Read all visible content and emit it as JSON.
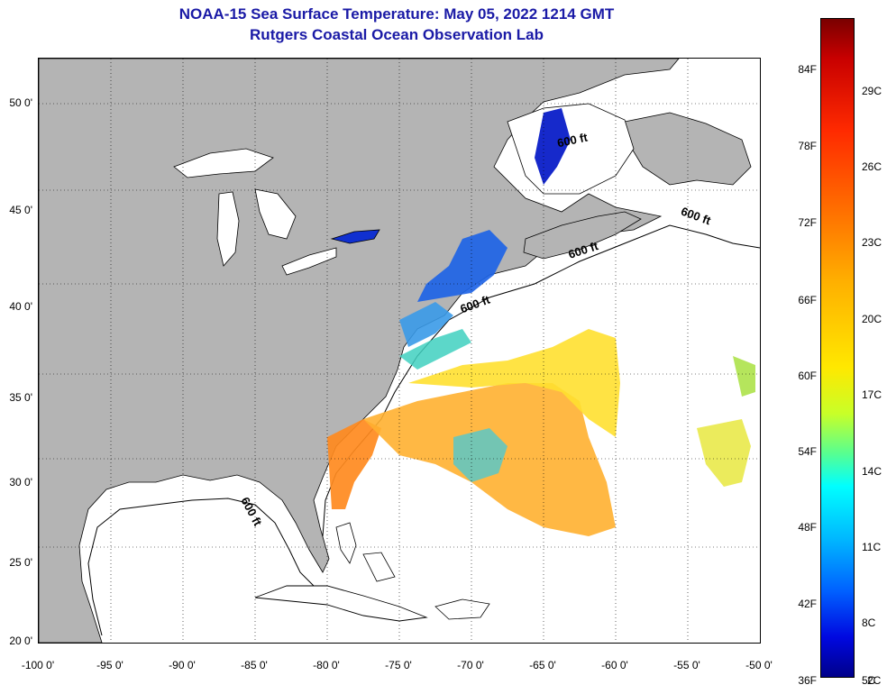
{
  "header": {
    "title_line1": "NOAA-15 Sea Surface Temperature:  May 05, 2022 1214 GMT",
    "title_line2": "Rutgers Coastal Ocean Observation Lab"
  },
  "map": {
    "lon_range": [
      -100,
      -50
    ],
    "lat_range": [
      20,
      52.5
    ],
    "lat_ticks": [
      "50 0'",
      "45 0'",
      "40 0'",
      "35 0'",
      "30 0'",
      "25 0'",
      "20 0'"
    ],
    "lon_ticks": [
      "-100 0'",
      "-95 0'",
      "-90 0'",
      "-85 0'",
      "-80 0'",
      "-75 0'",
      "-70 0'",
      "-65 0'",
      "-60 0'",
      "-55 0'",
      "-50 0'"
    ],
    "contour_labels": [
      "600 ft",
      "600 ft",
      "600 ft",
      "600 ft",
      "600 ft"
    ],
    "land_color": "#b4b4b4",
    "grid": "dotted"
  },
  "colorbar": {
    "fahrenheit": [
      "84F",
      "78F",
      "72F",
      "66F",
      "60F",
      "54F",
      "48F",
      "42F",
      "36F"
    ],
    "celsius": [
      "29C",
      "26C",
      "23C",
      "20C",
      "17C",
      "14C",
      "11C",
      "8C",
      "5C",
      "2C"
    ]
  }
}
